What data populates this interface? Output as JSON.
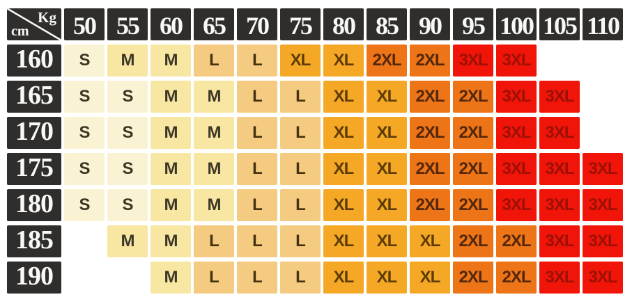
{
  "chart_data": {
    "type": "table",
    "col_axis_label": "Kg",
    "row_axis_label": "cm",
    "columns": [
      "50",
      "55",
      "60",
      "65",
      "70",
      "75",
      "80",
      "85",
      "90",
      "95",
      "100",
      "105",
      "110"
    ],
    "rows": [
      "160",
      "165",
      "170",
      "175",
      "180",
      "185",
      "190"
    ],
    "cells": [
      [
        "S",
        "M",
        "M",
        "L",
        "L",
        "XL",
        "XL",
        "2XL",
        "2XL",
        "3XL",
        "3XL",
        "",
        ""
      ],
      [
        "S",
        "S",
        "M",
        "M",
        "L",
        "L",
        "XL",
        "XL",
        "2XL",
        "2XL",
        "3XL",
        "3XL",
        ""
      ],
      [
        "S",
        "S",
        "M",
        "M",
        "L",
        "L",
        "XL",
        "XL",
        "2XL",
        "2XL",
        "3XL",
        "3XL",
        ""
      ],
      [
        "S",
        "S",
        "M",
        "M",
        "L",
        "L",
        "XL",
        "XL",
        "2XL",
        "2XL",
        "3XL",
        "3XL",
        "3XL"
      ],
      [
        "S",
        "S",
        "M",
        "M",
        "L",
        "L",
        "XL",
        "XL",
        "2XL",
        "2XL",
        "3XL",
        "3XL",
        "3XL"
      ],
      [
        "",
        "M",
        "M",
        "L",
        "L",
        "L",
        "XL",
        "XL",
        "XL",
        "2XL",
        "2XL",
        "3XL",
        "3XL"
      ],
      [
        "",
        "",
        "M",
        "L",
        "L",
        "L",
        "XL",
        "XL",
        "XL",
        "2XL",
        "2XL",
        "3XL",
        "3XL"
      ]
    ]
  },
  "palette": {
    "header_bg": "#2f2e2c",
    "header_text": "#f8f8f6",
    "gap": "#ffffff",
    "sizes": {
      "S": {
        "bg": "#faf3d3",
        "text": "#3c3627"
      },
      "M": {
        "bg": "#f8e7a2",
        "text": "#3c3627"
      },
      "L": {
        "bg": "#f4cb80",
        "text": "#44320f"
      },
      "XL": {
        "bg": "#f5a826",
        "text": "#5f3c06"
      },
      "2XL": {
        "bg": "#ee7517",
        "text": "#53270a"
      },
      "3XL": {
        "bg": "#f01508",
        "text": "#9c1005"
      }
    }
  }
}
